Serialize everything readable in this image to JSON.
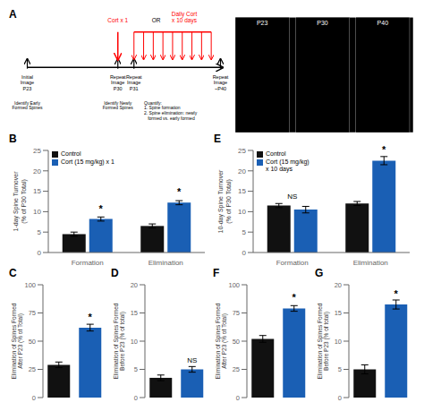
{
  "chart_data": [
    {
      "type": "diagram",
      "title": "A",
      "annotations": [
        {
          "text": "Cort x 1",
          "color": "red"
        },
        {
          "text": "OR"
        },
        {
          "text": "Daily Cort\nx 10 days",
          "color": "red"
        },
        {
          "text": "Initial\nImage\nP23"
        },
        {
          "text": "Repeat\nImage\nP30"
        },
        {
          "text": "Repeat\nImage\nP31"
        },
        {
          "text": "Repeat\nImage\n~P40"
        },
        {
          "text": "Identify Early\nFormed Spines"
        },
        {
          "text": "Identify Newly\nFormed Spines"
        },
        {
          "text": "Quantify:\n1. Spine formation\n2. Spine elimination: newly\n   formed vs. early formed"
        },
        {
          "text": "P23"
        },
        {
          "text": "P30"
        },
        {
          "text": "P40"
        }
      ]
    },
    {
      "type": "bar",
      "title": "B",
      "y_label": "1-day Spine Turnover\n(% of P30 Total)",
      "ylim": [
        0,
        25
      ],
      "yticks": [
        0,
        5,
        10,
        15,
        20,
        25
      ],
      "categories": [
        "Formation",
        "Elimination"
      ],
      "series": [
        {
          "name": "Control",
          "color": "#111111",
          "values": [
            4.5,
            6.5
          ],
          "errors": [
            0.5,
            0.5
          ]
        },
        {
          "name": "Cort (15 mg/kg) x 1",
          "color": "#1a5fb4",
          "values": [
            8.2,
            12.2
          ],
          "errors": [
            0.5,
            0.5
          ]
        }
      ],
      "legend": "upper left",
      "annotations": [
        {
          "text": "*",
          "category": "Formation",
          "series": "Cort (15 mg/kg) x 1"
        },
        {
          "text": "*",
          "category": "Elimination",
          "series": "Cort (15 mg/kg) x 1"
        }
      ]
    },
    {
      "type": "bar",
      "title": "E",
      "y_label": "10-day Spine Turnover\n(% of P30 Total)",
      "ylim": [
        0,
        25
      ],
      "yticks": [
        0,
        5,
        10,
        15,
        20,
        25
      ],
      "categories": [
        "Formation",
        "Elimination"
      ],
      "series": [
        {
          "name": "Control",
          "color": "#111111",
          "values": [
            11.5,
            12.0
          ],
          "errors": [
            0.5,
            0.5
          ]
        },
        {
          "name": "Cort (15 mg/kg)\nx 10 days",
          "color": "#1a5fb4",
          "values": [
            10.5,
            22.5
          ],
          "errors": [
            0.8,
            1.0
          ]
        }
      ],
      "legend": "upper left",
      "annotations": [
        {
          "text": "NS",
          "category": "Formation"
        },
        {
          "text": "*",
          "category": "Elimination",
          "series": "Cort (15 mg/kg)\nx 10 days"
        }
      ]
    },
    {
      "type": "bar",
      "title": "C",
      "y_label": "Elimination of Spines Formed\nAfter P23 (% of Total)",
      "ylim": [
        0,
        100
      ],
      "yticks": [
        0,
        25,
        50,
        75,
        100
      ],
      "categories": [
        null,
        null
      ],
      "values": [
        29,
        62
      ],
      "errors": [
        2.5,
        3.0
      ],
      "colors": [
        "#111111",
        "#1a5fb4"
      ],
      "tick_labels": "y",
      "annotations": [
        {
          "text": "*",
          "index": 1
        }
      ]
    },
    {
      "type": "bar",
      "title": "D",
      "y_label": "Elimination of Spines Formed\nBefore P23 (% of total)",
      "ylim": [
        0,
        20
      ],
      "yticks": [
        0,
        5,
        10,
        15,
        20
      ],
      "categories": [
        null,
        null
      ],
      "values": [
        3.5,
        5.0
      ],
      "errors": [
        0.5,
        0.5
      ],
      "colors": [
        "#111111",
        "#1a5fb4"
      ],
      "tick_labels": "y",
      "annotations": [
        {
          "text": "NS",
          "index": 1
        }
      ]
    },
    {
      "type": "bar",
      "title": "F",
      "y_label": "Elimination of Spines Formed\nAfter P23 (% of Total)",
      "ylim": [
        0,
        100
      ],
      "yticks": [
        0,
        25,
        50,
        75,
        100
      ],
      "categories": [
        null,
        null
      ],
      "values": [
        52,
        79
      ],
      "errors": [
        3.0,
        2.5
      ],
      "colors": [
        "#111111",
        "#1a5fb4"
      ],
      "tick_labels": "y",
      "annotations": [
        {
          "text": "*",
          "index": 1
        }
      ]
    },
    {
      "type": "bar",
      "title": "G",
      "y_label": "Elimination of Spines Formed\nBefore P23 (% of total)",
      "ylim": [
        0,
        20
      ],
      "yticks": [
        0,
        5,
        10,
        15,
        20
      ],
      "categories": [
        null,
        null
      ],
      "values": [
        5.0,
        16.5
      ],
      "errors": [
        0.8,
        0.8
      ],
      "colors": [
        "#111111",
        "#1a5fb4"
      ],
      "tick_labels": "y",
      "annotations": [
        {
          "text": "*",
          "index": 1
        }
      ]
    }
  ]
}
